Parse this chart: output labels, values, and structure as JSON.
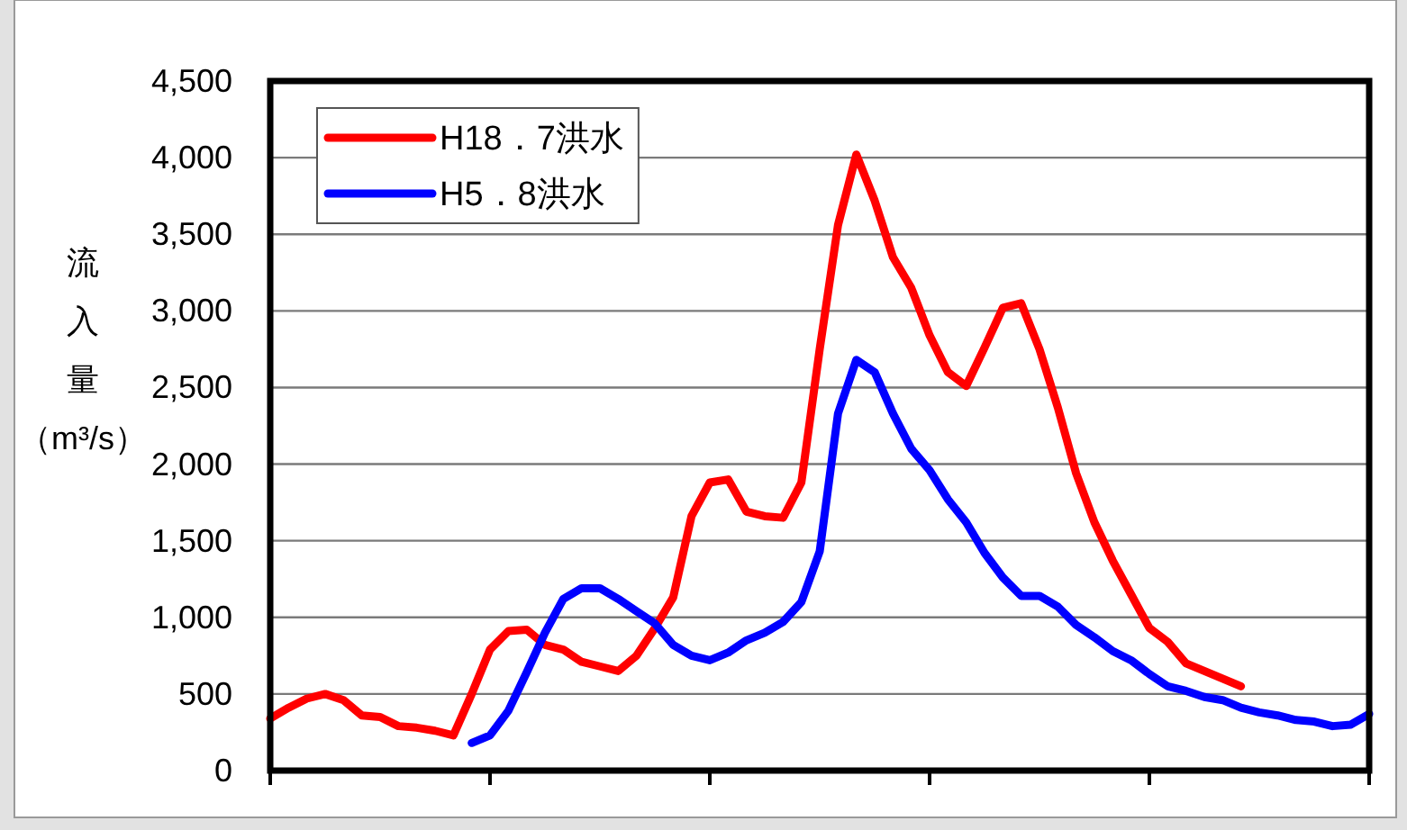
{
  "chart_data": {
    "type": "line",
    "categories": [
      null,
      null,
      null,
      null,
      null,
      null,
      null,
      null,
      null,
      null,
      null,
      null,
      null,
      null,
      null,
      null,
      null,
      null,
      null,
      null,
      null,
      null,
      null,
      null,
      null,
      null,
      null,
      null,
      null,
      null,
      null,
      null,
      null,
      null,
      null,
      null,
      null,
      null,
      null,
      null,
      null,
      null,
      null,
      null,
      null,
      null,
      null,
      null,
      null,
      null,
      null,
      null,
      null,
      null,
      null,
      null,
      null,
      null,
      null,
      null,
      null
    ],
    "series": [
      {
        "name": "H18．7洪水",
        "color": "#ff0000",
        "values": [
          340,
          410,
          470,
          500,
          460,
          360,
          350,
          290,
          280,
          260,
          230,
          500,
          790,
          910,
          920,
          820,
          790,
          710,
          680,
          650,
          750,
          930,
          1130,
          1660,
          1880,
          1900,
          1690,
          1660,
          1650,
          1880,
          2750,
          3560,
          4020,
          3720,
          3350,
          3150,
          2840,
          2600,
          2510,
          2760,
          3020,
          3050,
          2750,
          2370,
          1940,
          1620,
          1370,
          1150,
          930,
          840,
          700,
          650,
          600,
          550,
          null,
          null,
          null,
          null,
          null,
          null,
          null
        ]
      },
      {
        "name": "H5．8洪水",
        "color": "#0000ff",
        "values": [
          null,
          null,
          null,
          null,
          null,
          null,
          null,
          null,
          null,
          null,
          null,
          180,
          230,
          390,
          640,
          900,
          1120,
          1190,
          1190,
          1120,
          1040,
          960,
          820,
          750,
          720,
          770,
          850,
          900,
          970,
          1100,
          1430,
          2330,
          2680,
          2600,
          2330,
          2100,
          1960,
          1770,
          1620,
          1420,
          1260,
          1140,
          1140,
          1070,
          950,
          870,
          780,
          720,
          630,
          550,
          520,
          480,
          460,
          410,
          380,
          360,
          330,
          320,
          290,
          300,
          370
        ]
      }
    ],
    "ylim": [
      0,
      4500
    ],
    "yticks": [
      0,
      500,
      {
        "value": 1000,
        "label": "1,000"
      },
      {
        "value": 1500,
        "label": "1,500"
      },
      {
        "value": 2000,
        "label": "2,000"
      },
      {
        "value": 2500,
        "label": "2,500"
      },
      {
        "value": 3000,
        "label": "3,000"
      },
      {
        "value": 3500,
        "label": "3,500"
      },
      {
        "value": 4000,
        "label": "4,000"
      },
      {
        "value": 4500,
        "label": "4,500"
      }
    ],
    "ylabel": "流入量（m³/s）",
    "grid": "y",
    "legend": "top left",
    "line_style": "solid"
  }
}
